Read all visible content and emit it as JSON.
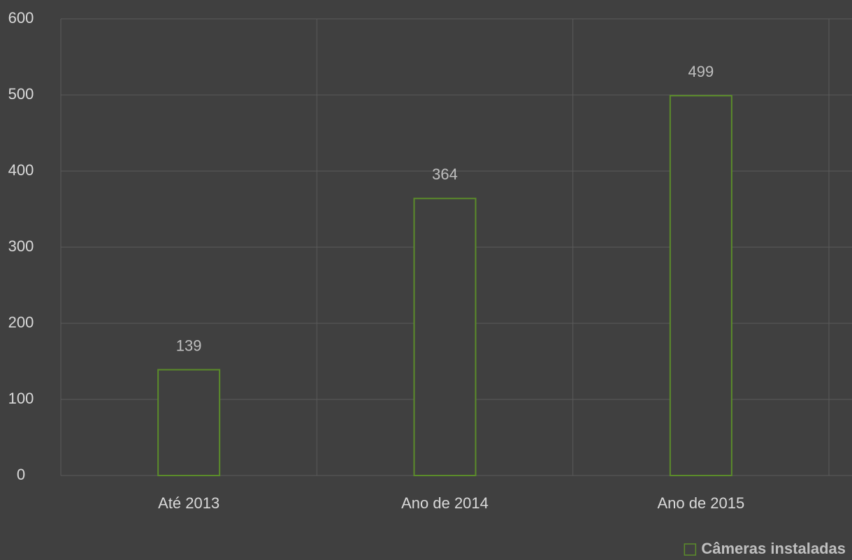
{
  "chart_data": {
    "type": "bar",
    "categories": [
      "Até 2013",
      "Ano de 2014",
      "Ano de 2015"
    ],
    "series": [
      {
        "name": "Câmeras instaladas",
        "color": "#5b8c2a",
        "values": [
          139,
          364,
          499
        ]
      }
    ],
    "ylim": [
      0,
      600
    ],
    "yticks": [
      0,
      100,
      200,
      300,
      400,
      500,
      600
    ],
    "grid": true,
    "legend": "bottom-right"
  }
}
